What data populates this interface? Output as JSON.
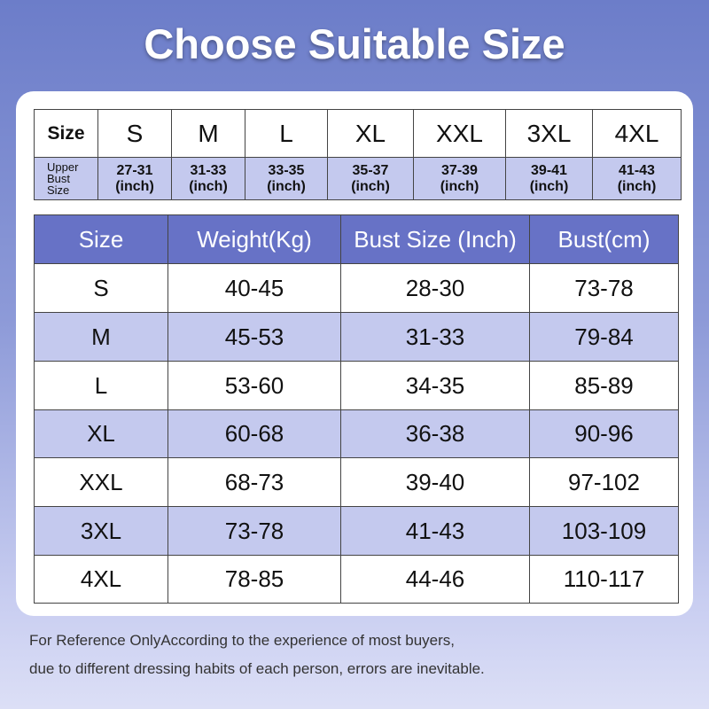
{
  "title": "Choose Suitable Size",
  "size_table": {
    "header": "Size",
    "sizes": [
      "S",
      "M",
      "L",
      "XL",
      "XXL",
      "3XL",
      "4XL"
    ],
    "upper_bust_label": [
      "Upper",
      "Bust",
      "Size"
    ],
    "upper_bust": [
      {
        "range": "27-31",
        "unit": "(inch)"
      },
      {
        "range": "31-33",
        "unit": "(inch)"
      },
      {
        "range": "33-35",
        "unit": "(inch)"
      },
      {
        "range": "35-37",
        "unit": "(inch)"
      },
      {
        "range": "37-39",
        "unit": "(inch)"
      },
      {
        "range": "39-41",
        "unit": "(inch)"
      },
      {
        "range": "41-43",
        "unit": "(inch)"
      }
    ]
  },
  "table": {
    "columns": [
      "Size",
      "Weight(Kg)",
      "Bust Size (Inch)",
      "Bust(cm)"
    ],
    "rows": [
      [
        "S",
        "40-45",
        "28-30",
        "73-78"
      ],
      [
        "M",
        "45-53",
        "31-33",
        "79-84"
      ],
      [
        "L",
        "53-60",
        "34-35",
        "85-89"
      ],
      [
        "XL",
        "60-68",
        "36-38",
        "90-96"
      ],
      [
        "XXL",
        "68-73",
        "39-40",
        "97-102"
      ],
      [
        "3XL",
        "73-78",
        "41-43",
        "103-109"
      ],
      [
        "4XL",
        "78-85",
        "44-46",
        "110-117"
      ]
    ]
  },
  "footnote": [
    "For Reference OnlyAccording to the experience of most buyers,",
    "due to different dressing habits of each person, errors are inevitable."
  ]
}
